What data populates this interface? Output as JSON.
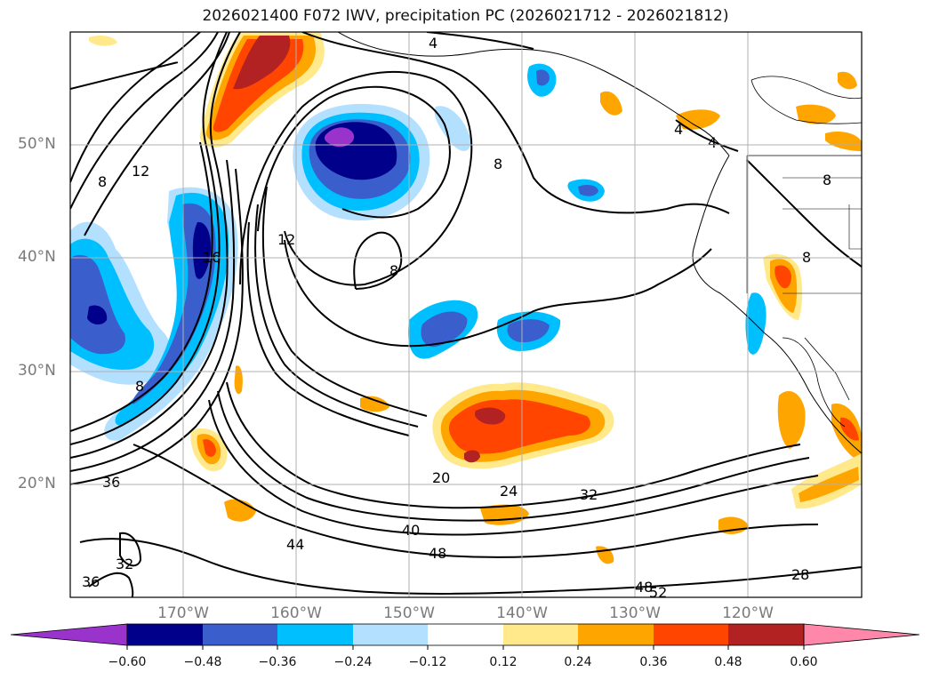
{
  "title": "2026021400 F072 IWV, precipitation PC (2026021712 - 2026021812)",
  "map": {
    "lat_labels": [
      "50°N",
      "40°N",
      "30°N",
      "20°N"
    ],
    "lon_labels": [
      "170°W",
      "160°W",
      "150°W",
      "140°W",
      "130°W",
      "120°W"
    ],
    "contour_labels": [
      "4",
      "4",
      "4",
      "8",
      "8",
      "8",
      "8",
      "8",
      "8",
      "12",
      "12",
      "16",
      "20",
      "24",
      "28",
      "32",
      "32",
      "36",
      "36",
      "40",
      "44",
      "48",
      "48",
      "52"
    ]
  },
  "colorbar": {
    "tick_labels": [
      "−0.60",
      "−0.48",
      "−0.36",
      "−0.24",
      "−0.12",
      "0.12",
      "0.24",
      "0.36",
      "0.48",
      "0.60"
    ],
    "colors": [
      "#9933cc",
      "#00008b",
      "#3a5fcd",
      "#00bfff",
      "#b3e0ff",
      "#ffffff",
      "#ffe98a",
      "#ffa500",
      "#ff4500",
      "#b22222",
      "#ff88aa"
    ]
  }
}
